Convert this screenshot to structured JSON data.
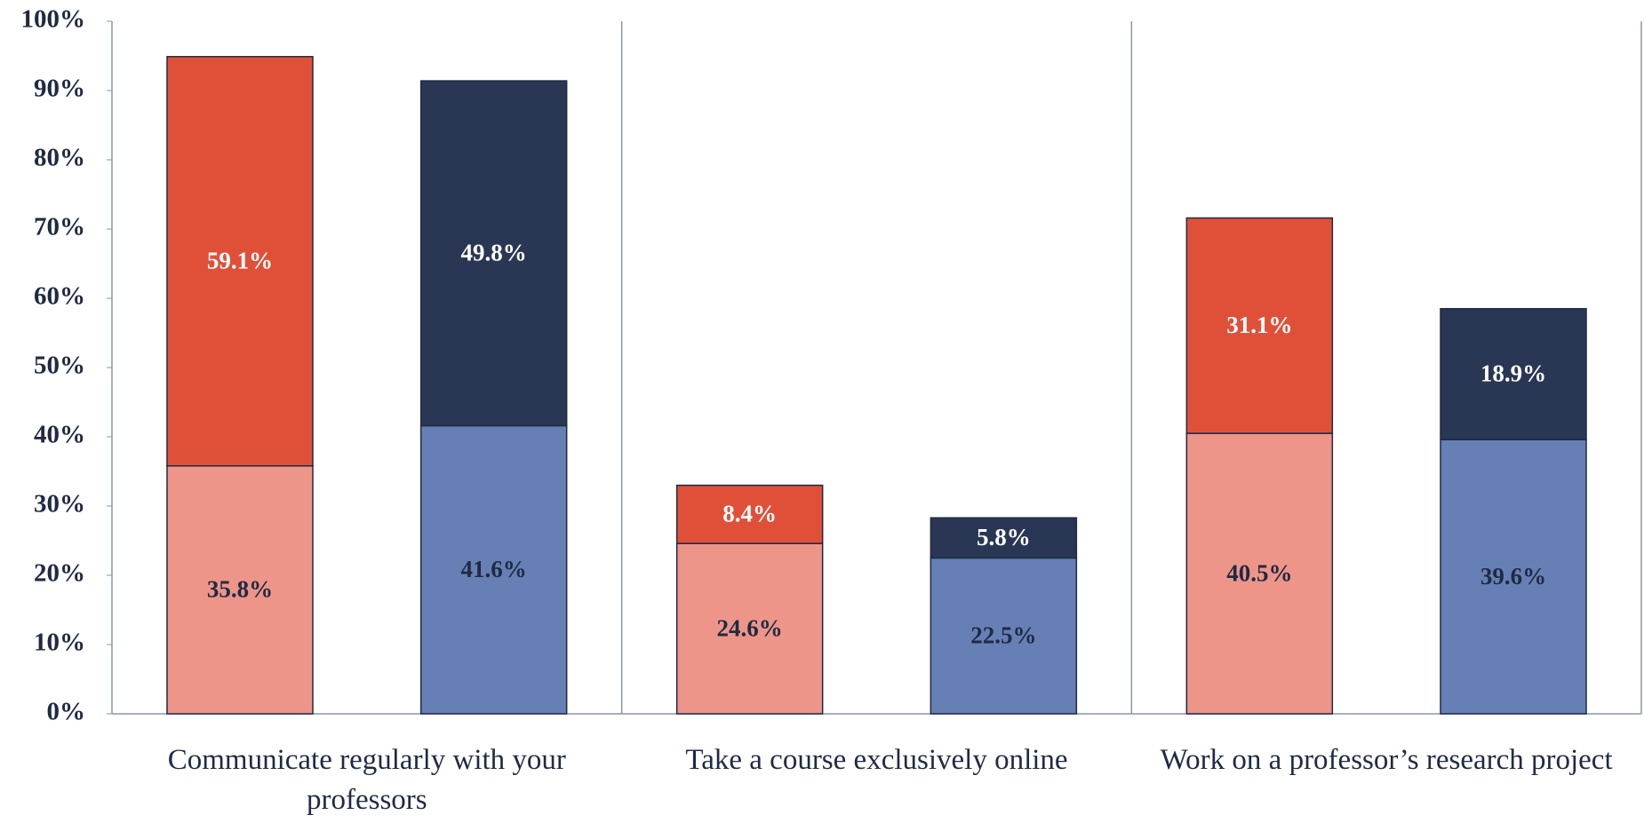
{
  "chart_data": {
    "type": "stacked_bar",
    "categories": [
      "Communicate regularly with your professors",
      "Take a course exclusively online",
      "Work on a professor’s research project"
    ],
    "series": [
      {
        "color": "#ee958a",
        "stack": 0,
        "label_color": "#1f2a44",
        "values": [
          35.8,
          24.6,
          40.5
        ],
        "value_labels": [
          "35.8%",
          "24.6%",
          "40.5%"
        ]
      },
      {
        "color": "#e05038",
        "stack": 0,
        "label_color": "#ffffff",
        "values": [
          59.1,
          8.4,
          31.1
        ],
        "value_labels": [
          "59.1%",
          "8.4%",
          "31.1%"
        ]
      },
      {
        "color": "#6680b5",
        "stack": 1,
        "label_color": "#1f2a44",
        "values": [
          41.6,
          22.5,
          39.6
        ],
        "value_labels": [
          "41.6%",
          "22.5%",
          "39.6%"
        ]
      },
      {
        "color": "#293754",
        "stack": 1,
        "label_color": "#ffffff",
        "values": [
          49.8,
          5.8,
          18.9
        ],
        "value_labels": [
          "49.8%",
          "5.8%",
          "18.9%"
        ]
      }
    ],
    "ylim": [
      0,
      100
    ],
    "yticks": [
      {
        "value": 0,
        "label": "0%"
      },
      {
        "value": 10,
        "label": "10%"
      },
      {
        "value": 20,
        "label": "20%"
      },
      {
        "value": 30,
        "label": "30%"
      },
      {
        "value": 40,
        "label": "40%"
      },
      {
        "value": 50,
        "label": "50%"
      },
      {
        "value": 60,
        "label": "60%"
      },
      {
        "value": 70,
        "label": "70%"
      },
      {
        "value": 80,
        "label": "80%"
      },
      {
        "value": 90,
        "label": "90%"
      },
      {
        "value": 100,
        "label": "100%"
      }
    ],
    "grid": false
  }
}
